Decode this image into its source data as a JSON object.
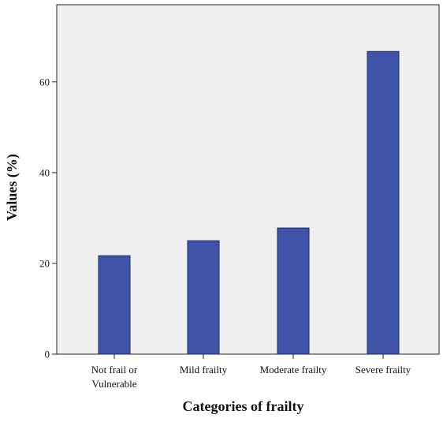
{
  "colors": {
    "plot_background": "#f0f0f0",
    "bar_fill": "#3f53a8",
    "bar_stroke": "#1e2a5a",
    "axis": "#222222"
  },
  "chart_data": {
    "type": "bar",
    "xlabel": "Categories of frailty",
    "ylabel": "Values (%)",
    "categories": [
      [
        "Not frail or",
        "Vulnerable"
      ],
      [
        "Mild frailty"
      ],
      [
        "Moderate frailty"
      ],
      [
        "Severe frailty"
      ]
    ],
    "values": [
      21.7,
      25.0,
      27.8,
      66.7
    ],
    "ylim": [
      0,
      77
    ],
    "yticks": [
      0,
      20,
      40,
      60
    ],
    "grid": false,
    "legend": "none"
  }
}
